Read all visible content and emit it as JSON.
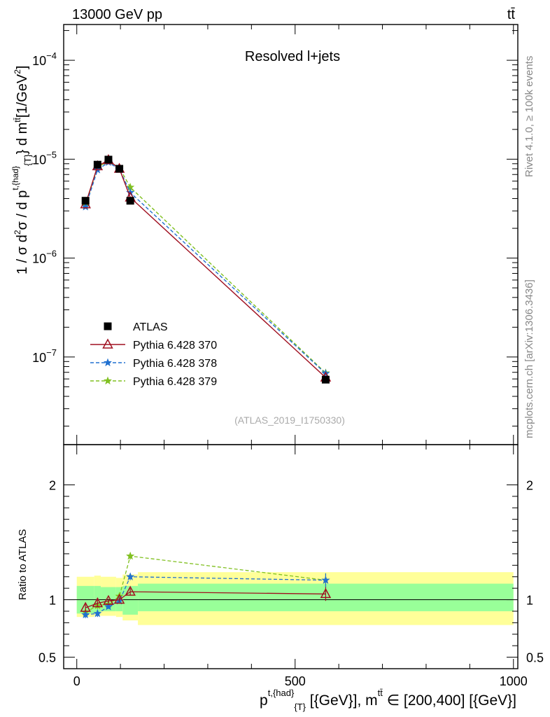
{
  "header": {
    "energy_label": "13000 GeV pp",
    "process_label": "tt̄"
  },
  "sidebar": {
    "rivet_label": "Rivet 4.1.0, ≥ 100k events",
    "source_label": "mcplots.cern.ch [arXiv:1306.3436]"
  },
  "chart_data": [
    {
      "type": "line",
      "panel": "main",
      "title": "Resolved l+jets",
      "reference": "(ATLAS_2019_I1750330)",
      "xlabel": "p^{t,{had}}_{T} [{GeV}], m^{tt̄} ∈ [200,400] [{GeV}]",
      "xlabel_parts": [
        "p",
        "t,{had}",
        "{T}",
        " [{GeV}], m",
        "tt̄",
        " ∈ [200,400] [{GeV}]"
      ],
      "ylabel": "1 / σ d²σ / d p^{t,{had}}_{T} d m^{tt̄}[1/GeV²]",
      "ylabel_parts": [
        "1 / σ d",
        "2",
        "σ / d p",
        "t,{had}",
        "{T}",
        "} d m",
        "tt̄",
        "[1/GeV",
        "2",
        "]"
      ],
      "xscale": "linear",
      "yscale": "log",
      "xlim": [
        -30,
        1010
      ],
      "ylim": [
        1.3e-08,
        0.00023
      ],
      "xticks": [
        0,
        500,
        1000
      ],
      "xtick_labels": [
        "0",
        "500",
        "1000"
      ],
      "yticks": [
        1e-07,
        1e-06,
        1e-05,
        0.0001
      ],
      "ytick_labels": [
        [
          "10",
          "−7"
        ],
        [
          "10",
          "−6"
        ],
        [
          "10",
          "−5"
        ],
        [
          "10",
          "−4"
        ]
      ],
      "legend_position": "bottom-left",
      "x": [
        20,
        47.5,
        72.5,
        97.5,
        122.5,
        570
      ],
      "bin_edges": [
        0,
        40,
        55,
        90,
        105,
        140,
        1000
      ],
      "series": [
        {
          "name": "ATLAS",
          "color": "#000000",
          "marker": "square",
          "linestyle": "none",
          "values": [
            3.8e-06,
            8.8e-06,
            9.9e-06,
            8e-06,
            3.8e-06,
            5.9e-08
          ]
        },
        {
          "name": "Pythia 6.428 370",
          "color": "#a01020",
          "marker": "triangle-open",
          "linestyle": "solid",
          "values": [
            3.5e-06,
            8.5e-06,
            9.8e-06,
            8e-06,
            4.1e-06,
            6.2e-08
          ]
        },
        {
          "name": "Pythia 6.428 378",
          "color": "#2070d0",
          "marker": "star",
          "linestyle": "dashed",
          "values": [
            3.3e-06,
            7.8e-06,
            9.3e-06,
            7.9e-06,
            4.6e-06,
            6.8e-08
          ]
        },
        {
          "name": "Pythia 6.428 379",
          "color": "#80c020",
          "marker": "star",
          "linestyle": "dashed",
          "values": [
            3.4e-06,
            8.3e-06,
            9.5e-06,
            8.2e-06,
            5.2e-06,
            6.9e-08
          ]
        }
      ]
    },
    {
      "type": "line",
      "panel": "ratio",
      "ylabel": "Ratio to ATLAS",
      "ylim": [
        0.4,
        2.35
      ],
      "yticks": [
        0.5,
        1,
        2
      ],
      "ytick_labels": [
        "0.5",
        "1",
        "2"
      ],
      "xlim": [
        -30,
        1010
      ],
      "x": [
        20,
        47.5,
        72.5,
        97.5,
        122.5,
        570
      ],
      "band_edges": [
        0,
        40,
        55,
        90,
        105,
        140,
        1000
      ],
      "band_inner": [
        [
          0.88,
          1.12
        ],
        [
          0.89,
          1.12
        ],
        [
          0.9,
          1.11
        ],
        [
          0.9,
          1.11
        ],
        [
          0.87,
          1.12
        ],
        [
          0.9,
          1.14
        ]
      ],
      "band_outer": [
        [
          0.85,
          1.2
        ],
        [
          0.86,
          1.21
        ],
        [
          0.86,
          1.2
        ],
        [
          0.85,
          1.19
        ],
        [
          0.82,
          1.22
        ],
        [
          0.78,
          1.24
        ]
      ],
      "series": [
        {
          "name": "Pythia 6.428 370",
          "color": "#a01020",
          "marker": "triangle-open",
          "linestyle": "solid",
          "values": [
            0.93,
            0.97,
            0.99,
            1.0,
            1.07,
            1.05
          ],
          "errors": [
            0.03,
            0.03,
            0.02,
            0.02,
            0.03,
            0.06
          ]
        },
        {
          "name": "Pythia 6.428 378",
          "color": "#2070d0",
          "marker": "star",
          "linestyle": "dashed",
          "values": [
            0.87,
            0.88,
            0.94,
            0.99,
            1.2,
            1.17
          ],
          "errors": [
            0.03,
            0.03,
            0.02,
            0.02,
            0.03,
            0.06
          ]
        },
        {
          "name": "Pythia 6.428 379",
          "color": "#80c020",
          "marker": "star",
          "linestyle": "dashed",
          "values": [
            0.89,
            0.95,
            0.96,
            1.03,
            1.38,
            1.17
          ],
          "errors": [
            0.03,
            0.03,
            0.02,
            0.02,
            0.03,
            0.06
          ]
        }
      ]
    }
  ]
}
